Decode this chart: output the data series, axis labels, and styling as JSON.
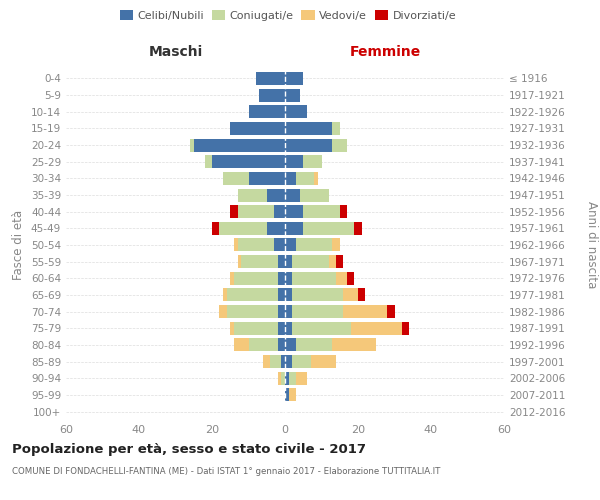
{
  "age_groups": [
    "0-4",
    "5-9",
    "10-14",
    "15-19",
    "20-24",
    "25-29",
    "30-34",
    "35-39",
    "40-44",
    "45-49",
    "50-54",
    "55-59",
    "60-64",
    "65-69",
    "70-74",
    "75-79",
    "80-84",
    "85-89",
    "90-94",
    "95-99",
    "100+"
  ],
  "birth_years": [
    "2012-2016",
    "2007-2011",
    "2002-2006",
    "1997-2001",
    "1992-1996",
    "1987-1991",
    "1982-1986",
    "1977-1981",
    "1972-1976",
    "1967-1971",
    "1962-1966",
    "1957-1961",
    "1952-1956",
    "1947-1951",
    "1942-1946",
    "1937-1941",
    "1932-1936",
    "1927-1931",
    "1922-1926",
    "1917-1921",
    "≤ 1916"
  ],
  "male_celibe": [
    8,
    7,
    10,
    15,
    25,
    20,
    10,
    5,
    3,
    5,
    3,
    2,
    2,
    2,
    2,
    2,
    2,
    1,
    0,
    0,
    0
  ],
  "male_coniugato": [
    0,
    0,
    0,
    0,
    1,
    2,
    7,
    8,
    10,
    13,
    10,
    10,
    12,
    14,
    14,
    12,
    8,
    3,
    1,
    0,
    0
  ],
  "male_vedovo": [
    0,
    0,
    0,
    0,
    0,
    0,
    0,
    0,
    0,
    0,
    1,
    1,
    1,
    1,
    2,
    1,
    4,
    2,
    1,
    0,
    0
  ],
  "male_divorziato": [
    0,
    0,
    0,
    0,
    0,
    0,
    0,
    0,
    2,
    2,
    0,
    0,
    0,
    0,
    0,
    0,
    0,
    0,
    0,
    0,
    0
  ],
  "female_celibe": [
    5,
    4,
    6,
    13,
    13,
    5,
    3,
    4,
    5,
    5,
    3,
    2,
    2,
    2,
    2,
    2,
    3,
    2,
    1,
    1,
    0
  ],
  "female_coniugato": [
    0,
    0,
    0,
    2,
    4,
    5,
    5,
    8,
    10,
    14,
    10,
    10,
    12,
    14,
    14,
    16,
    10,
    5,
    2,
    0,
    0
  ],
  "female_vedovo": [
    0,
    0,
    0,
    0,
    0,
    0,
    1,
    0,
    0,
    0,
    2,
    2,
    3,
    4,
    12,
    14,
    12,
    7,
    3,
    2,
    0
  ],
  "female_divorziato": [
    0,
    0,
    0,
    0,
    0,
    0,
    0,
    0,
    2,
    2,
    0,
    2,
    2,
    2,
    2,
    2,
    0,
    0,
    0,
    0,
    0
  ],
  "color_celibe": "#4472a8",
  "color_coniugato": "#c5d9a0",
  "color_vedovo": "#f5c87a",
  "color_divorziato": "#cc0000",
  "title": "Popolazione per età, sesso e stato civile - 2017",
  "subtitle": "COMUNE DI FONDACHELLI-FANTINA (ME) - Dati ISTAT 1° gennaio 2017 - Elaborazione TUTTITALIA.IT",
  "label_maschi": "Maschi",
  "label_femmine": "Femmine",
  "ylabel_left": "Fasce di età",
  "ylabel_right": "Anni di nascita",
  "xlim": 60,
  "bg_color": "#ffffff",
  "grid_color": "#dddddd",
  "tick_color": "#888888",
  "title_color": "#222222",
  "sub_color": "#666666",
  "maschi_color": "#333333",
  "femmine_color": "#cc0000"
}
